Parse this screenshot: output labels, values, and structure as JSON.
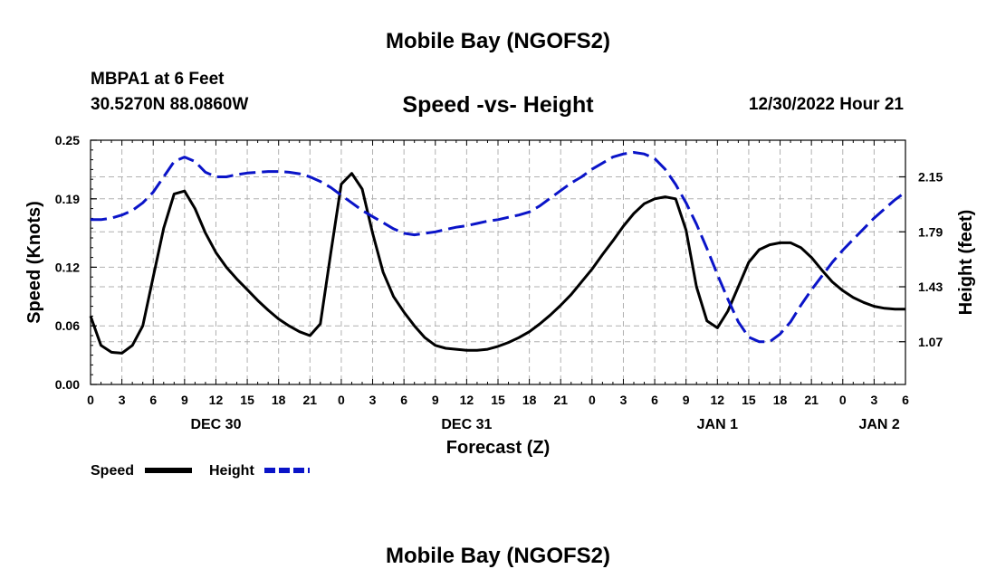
{
  "page_title": "Mobile Bay (NGOFS2)",
  "footer_title": "Mobile Bay (NGOFS2)",
  "station": {
    "name_line": "MBPA1 at 6 Feet",
    "coords_line": "30.5270N  88.0860W"
  },
  "chart_data": {
    "type": "line",
    "title": "Speed -vs- Height",
    "datetime": "12/30/2022 Hour 21",
    "xlabel": "Forecast (Z)",
    "ylabel": "Speed (Knots)",
    "y2label": "Height (feet)",
    "x_unit": "hours from 2022-12-30 00Z",
    "xlim": [
      0,
      78
    ],
    "ylim": [
      0.0,
      0.25
    ],
    "y2lim": [
      0.79,
      2.39
    ],
    "grid": true,
    "legend_position": "bottom-left",
    "x_tick_labels": [
      "0",
      "3",
      "6",
      "9",
      "12",
      "15",
      "18",
      "21",
      "0",
      "3",
      "6",
      "9",
      "12",
      "15",
      "18",
      "21",
      "0",
      "3",
      "6",
      "9",
      "12",
      "15",
      "18",
      "21",
      "0",
      "3",
      "6"
    ],
    "y_tick_labels": [
      "0.00",
      "0.06",
      "0.12",
      "0.19",
      "0.25"
    ],
    "y2_tick_labels": [
      "1.07",
      "1.43",
      "1.79",
      "2.15"
    ],
    "date_labels": [
      {
        "hour": 12,
        "label": "DEC 30"
      },
      {
        "hour": 36,
        "label": "DEC 31"
      },
      {
        "hour": 60,
        "label": "JAN 1"
      },
      {
        "hour": 75.5,
        "label": "JAN 2"
      }
    ],
    "colors": {
      "speed": "#000000",
      "height": "#0a14c8",
      "grid": "#b0b0b0"
    },
    "series": [
      {
        "name": "Speed",
        "axis": "left",
        "x": [
          0,
          1,
          2,
          3,
          4,
          5,
          6,
          7,
          8,
          9,
          10,
          11,
          12,
          13,
          14,
          15,
          16,
          17,
          18,
          19,
          20,
          21,
          22,
          23,
          24,
          25,
          26,
          27,
          28,
          29,
          30,
          31,
          32,
          33,
          34,
          35,
          36,
          37,
          38,
          39,
          40,
          41,
          42,
          43,
          44,
          45,
          46,
          47,
          48,
          49,
          50,
          51,
          52,
          53,
          54,
          55,
          56,
          57,
          58,
          59,
          60,
          61,
          62,
          63,
          64,
          65,
          66,
          67,
          68,
          69,
          70,
          71,
          72,
          73,
          74,
          75,
          76,
          77,
          78
        ],
        "values": [
          0.07,
          0.04,
          0.033,
          0.032,
          0.04,
          0.06,
          0.11,
          0.16,
          0.195,
          0.198,
          0.18,
          0.155,
          0.135,
          0.12,
          0.108,
          0.097,
          0.086,
          0.076,
          0.067,
          0.06,
          0.054,
          0.05,
          0.062,
          0.135,
          0.205,
          0.216,
          0.2,
          0.155,
          0.115,
          0.09,
          0.074,
          0.06,
          0.048,
          0.04,
          0.037,
          0.036,
          0.035,
          0.035,
          0.036,
          0.039,
          0.043,
          0.048,
          0.054,
          0.062,
          0.071,
          0.081,
          0.092,
          0.105,
          0.118,
          0.133,
          0.147,
          0.162,
          0.175,
          0.185,
          0.19,
          0.192,
          0.19,
          0.158,
          0.1,
          0.065,
          0.058,
          0.075,
          0.1,
          0.125,
          0.138,
          0.143,
          0.145,
          0.145,
          0.14,
          0.13,
          0.117,
          0.105,
          0.096,
          0.089,
          0.084,
          0.08,
          0.078,
          0.077,
          0.077
        ]
      },
      {
        "name": "Height",
        "axis": "right",
        "x": [
          0,
          1,
          2,
          3,
          4,
          5,
          6,
          7,
          8,
          9,
          10,
          11,
          12,
          13,
          14,
          15,
          16,
          17,
          18,
          19,
          20,
          21,
          22,
          23,
          24,
          25,
          26,
          27,
          28,
          29,
          30,
          31,
          32,
          33,
          34,
          35,
          36,
          37,
          38,
          39,
          40,
          41,
          42,
          43,
          44,
          45,
          46,
          47,
          48,
          49,
          50,
          51,
          52,
          53,
          54,
          55,
          56,
          57,
          58,
          59,
          60,
          61,
          62,
          63,
          64,
          65,
          66,
          67,
          68,
          69,
          70,
          71,
          72,
          73,
          74,
          75,
          76,
          77,
          78
        ],
        "values": [
          1.87,
          1.87,
          1.88,
          1.9,
          1.93,
          1.98,
          2.05,
          2.15,
          2.25,
          2.28,
          2.25,
          2.18,
          2.15,
          2.15,
          2.165,
          2.175,
          2.18,
          2.185,
          2.185,
          2.18,
          2.17,
          2.15,
          2.12,
          2.08,
          2.03,
          1.98,
          1.93,
          1.89,
          1.85,
          1.81,
          1.78,
          1.77,
          1.78,
          1.79,
          1.805,
          1.82,
          1.83,
          1.845,
          1.86,
          1.87,
          1.885,
          1.9,
          1.92,
          1.96,
          2.01,
          2.06,
          2.11,
          2.15,
          2.2,
          2.24,
          2.28,
          2.3,
          2.31,
          2.3,
          2.27,
          2.2,
          2.1,
          1.98,
          1.84,
          1.68,
          1.51,
          1.35,
          1.2,
          1.1,
          1.07,
          1.07,
          1.12,
          1.2,
          1.31,
          1.41,
          1.5,
          1.59,
          1.67,
          1.74,
          1.81,
          1.88,
          1.94,
          2.0,
          2.05
        ]
      }
    ]
  }
}
